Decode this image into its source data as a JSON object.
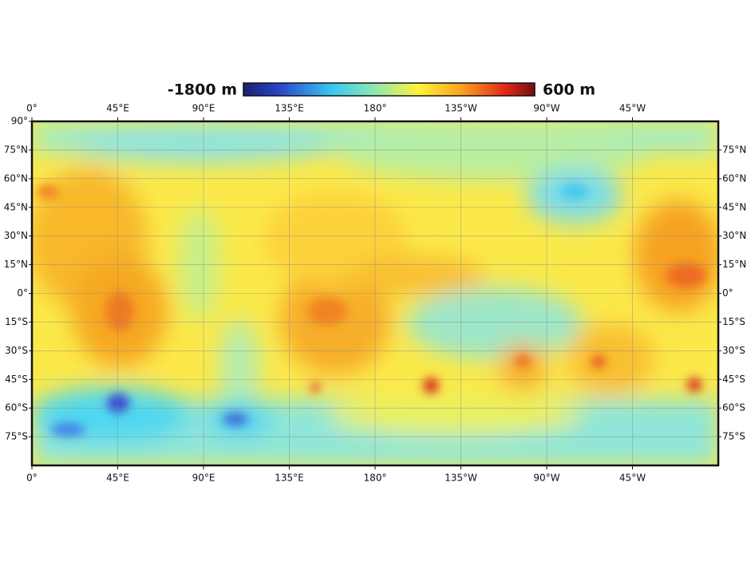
{
  "colorbar": {
    "min_label": "-1800 m",
    "max_label": "600 m"
  },
  "longitude_labels": [
    "0°",
    "45°E",
    "90°E",
    "135°E",
    "180°",
    "135°W",
    "90°W",
    "45°W"
  ],
  "latitude_labels_left": [
    "90°",
    "75°N",
    "60°N",
    "45°N",
    "30°N",
    "15°N",
    "0°",
    "15°S",
    "30°S",
    "45°S",
    "60°S",
    "75°S"
  ],
  "latitude_labels_right": [
    "75°N",
    "60°N",
    "45°N",
    "30°N",
    "15°N",
    "0°",
    "15°S",
    "30°S",
    "45°S",
    "60°S",
    "75°S"
  ]
}
